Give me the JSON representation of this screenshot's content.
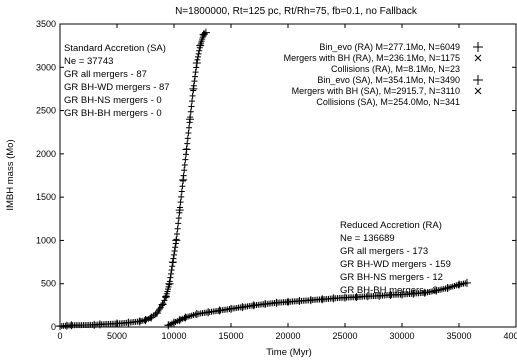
{
  "chart_data": {
    "type": "scatter",
    "title": "N=1800000, Rt=125 pc, Rt/Rh=75, fb=0.1, no Fallback",
    "xlabel": "Time (Myr)",
    "ylabel": "IMBH mass (Mo)",
    "xlim": [
      0,
      40000
    ],
    "ylim": [
      0,
      3500
    ],
    "xticks": [
      "0",
      "5000",
      "10000",
      "15000",
      "20000",
      "25000",
      "30000",
      "35000",
      "40000"
    ],
    "yticks": [
      "0",
      "500",
      "1000",
      "1500",
      "2000",
      "2500",
      "3000",
      "3500"
    ],
    "grid": false,
    "legend_position": "top-right",
    "legend": [
      {
        "label": "Bin_evo (RA) M=277.1Mo, N=6049",
        "marker": "plus"
      },
      {
        "label": "Mergers with BH (RA), M=236.1Mo, N=1175",
        "marker": "cross"
      },
      {
        "label": "Collisions (RA), M=8.1Mo, N=23",
        "marker": "none"
      },
      {
        "label": "Bin_evo (SA), M=354.1Mo, N=3490",
        "marker": "plus"
      },
      {
        "label": "Mergers with BH (SA), M=2915.7, N=3110",
        "marker": "cross"
      },
      {
        "label": "Collisions (SA), M=254.0Mo, N=341",
        "marker": "none"
      }
    ],
    "annotations": {
      "standard": [
        "Standard Accretion (SA)",
        "Ne = 37743",
        "GR all mergers - 87",
        "GR BH-WD mergers - 87",
        "GR BH-NS mergers - 0",
        "GR BH-BH mergers - 0"
      ],
      "reduced": [
        "Reduced Accretion (RA)",
        "Ne = 136689",
        "GR all mergers - 173",
        "GR BH-WD mergers - 159",
        "GR BH-NS mergers - 12",
        "GR BH-BH mergers - 2"
      ]
    },
    "series": [
      {
        "name": "Standard Accretion (SA)",
        "x": [
          0,
          600,
          1000,
          3000,
          3500,
          5000,
          6000,
          7000,
          7500,
          8000,
          8500,
          9000,
          9300,
          9600,
          9900,
          10200,
          10500,
          10800,
          11100,
          11400,
          11700,
          12000,
          12300,
          12600,
          12800
        ],
        "y": [
          10,
          15,
          20,
          25,
          30,
          40,
          50,
          65,
          80,
          110,
          160,
          260,
          350,
          500,
          750,
          1000,
          1350,
          1700,
          2050,
          2400,
          2750,
          3050,
          3250,
          3380,
          3400
        ]
      },
      {
        "name": "Reduced Accretion (RA)",
        "x": [
          9500,
          10000,
          10500,
          11000,
          12000,
          13000,
          14000,
          15000,
          16000,
          17000,
          18000,
          19000,
          20000,
          21000,
          22000,
          23000,
          24000,
          25000,
          26000,
          27000,
          28000,
          29000,
          30000,
          31000,
          32000,
          33000,
          34000,
          35000,
          35700
        ],
        "y": [
          20,
          50,
          80,
          110,
          150,
          170,
          190,
          210,
          230,
          250,
          265,
          280,
          290,
          300,
          310,
          320,
          330,
          340,
          345,
          355,
          360,
          370,
          375,
          385,
          395,
          420,
          450,
          490,
          510
        ]
      }
    ]
  }
}
